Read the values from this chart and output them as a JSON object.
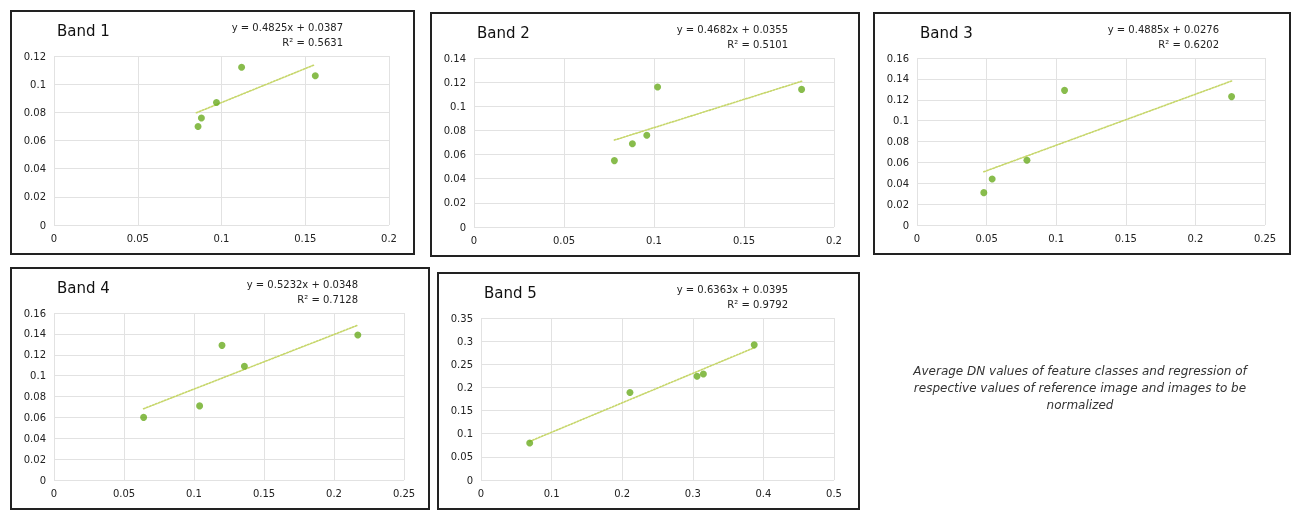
{
  "chart_data": [
    {
      "type": "scatter",
      "title": "Band 1",
      "annotations": [
        "y = 0.4825x + 0.0387",
        "R² = 0.5631"
      ],
      "xlim": [
        0,
        0.2
      ],
      "xticks": [
        0,
        0.05,
        0.1,
        0.15,
        0.2
      ],
      "ylim": [
        0,
        0.12
      ],
      "yticks": [
        0,
        0.02,
        0.04,
        0.06,
        0.08,
        0.1,
        0.12
      ],
      "grid": true,
      "marker": "circle",
      "series": [
        {
          "color": "#6aab1f",
          "x": [
            0.086,
            0.088,
            0.097,
            0.112,
            0.156
          ],
          "values": [
            0.07,
            0.076,
            0.087,
            0.112,
            0.106
          ]
        },
        {
          "type": "line",
          "line_style": "dotted",
          "marker": "none",
          "color": "#c6d66a",
          "x": [
            0.085,
            0.155
          ],
          "values": [
            0.0797,
            0.1135
          ]
        }
      ]
    },
    {
      "type": "scatter",
      "title": "Band 2",
      "annotations": [
        "y = 0.4682x + 0.0355",
        "R² = 0.5101"
      ],
      "xlim": [
        0,
        0.2
      ],
      "xticks": [
        0,
        0.05,
        0.1,
        0.15,
        0.2
      ],
      "ylim": [
        0,
        0.14
      ],
      "yticks": [
        0,
        0.02,
        0.04,
        0.06,
        0.08,
        0.1,
        0.12,
        0.14
      ],
      "grid": true,
      "marker": "circle",
      "series": [
        {
          "color": "#6aab1f",
          "x": [
            0.078,
            0.088,
            0.096,
            0.102,
            0.182
          ],
          "values": [
            0.055,
            0.069,
            0.076,
            0.116,
            0.114
          ]
        },
        {
          "type": "line",
          "line_style": "dotted",
          "marker": "none",
          "color": "#c6d66a",
          "x": [
            0.078,
            0.182
          ],
          "values": [
            0.072,
            0.1207
          ]
        }
      ]
    },
    {
      "type": "scatter",
      "title": "Band 3",
      "annotations": [
        "y = 0.4885x + 0.0276",
        "R² = 0.6202"
      ],
      "xlim": [
        0,
        0.25
      ],
      "xticks": [
        0,
        0.05,
        0.1,
        0.15,
        0.2,
        0.25
      ],
      "ylim": [
        0,
        0.16
      ],
      "yticks": [
        0,
        0.02,
        0.04,
        0.06,
        0.08,
        0.1,
        0.12,
        0.14,
        0.16
      ],
      "grid": true,
      "marker": "circle",
      "series": [
        {
          "color": "#6aab1f",
          "x": [
            0.048,
            0.054,
            0.079,
            0.106,
            0.226
          ],
          "values": [
            0.031,
            0.044,
            0.062,
            0.129,
            0.123
          ]
        },
        {
          "type": "line",
          "line_style": "dotted",
          "marker": "none",
          "color": "#c6d66a",
          "x": [
            0.048,
            0.226
          ],
          "values": [
            0.051,
            0.138
          ]
        }
      ]
    },
    {
      "type": "scatter",
      "title": "Band 4",
      "annotations": [
        "y = 0.5232x + 0.0348",
        "R² = 0.7128"
      ],
      "xlim": [
        0,
        0.25
      ],
      "xticks": [
        0,
        0.05,
        0.1,
        0.15,
        0.2,
        0.25
      ],
      "ylim": [
        0,
        0.16
      ],
      "yticks": [
        0,
        0.02,
        0.04,
        0.06,
        0.08,
        0.1,
        0.12,
        0.14,
        0.16
      ],
      "grid": true,
      "marker": "circle",
      "series": [
        {
          "color": "#6aab1f",
          "x": [
            0.064,
            0.104,
            0.12,
            0.136,
            0.217
          ],
          "values": [
            0.06,
            0.071,
            0.129,
            0.109,
            0.139
          ]
        },
        {
          "type": "line",
          "line_style": "dotted",
          "marker": "none",
          "color": "#c6d66a",
          "x": [
            0.064,
            0.217
          ],
          "values": [
            0.0683,
            0.1483
          ]
        }
      ]
    },
    {
      "type": "scatter",
      "title": "Band 5",
      "annotations": [
        "y = 0.6363x + 0.0395",
        "R² = 0.9792"
      ],
      "xlim": [
        0,
        0.5
      ],
      "xticks": [
        0,
        0.1,
        0.2,
        0.3,
        0.4,
        0.5
      ],
      "ylim": [
        0,
        0.35
      ],
      "yticks": [
        0,
        0.05,
        0.1,
        0.15,
        0.2,
        0.25,
        0.3,
        0.35
      ],
      "grid": true,
      "marker": "circle",
      "series": [
        {
          "color": "#6aab1f",
          "x": [
            0.069,
            0.211,
            0.306,
            0.315,
            0.387
          ],
          "values": [
            0.08,
            0.189,
            0.224,
            0.229,
            0.292
          ]
        },
        {
          "type": "line",
          "line_style": "dotted",
          "marker": "none",
          "color": "#c6d66a",
          "x": [
            0.069,
            0.387
          ],
          "values": [
            0.0834,
            0.2858
          ]
        }
      ]
    },
    {
      "type": "other",
      "annotations": [
        "Average DN values of feature classes and regression of respective values of reference image and images to be normalized"
      ]
    }
  ]
}
